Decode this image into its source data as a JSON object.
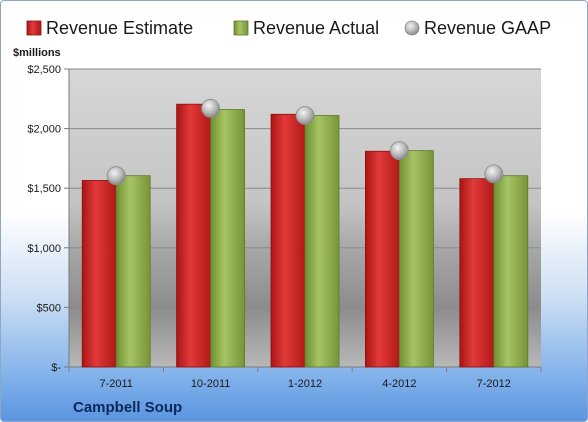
{
  "chart_data": {
    "type": "bar",
    "title": "",
    "company": "Campbell Soup",
    "ylabel": "$millions",
    "xlabel": "",
    "categories": [
      "7-2011",
      "10-2011",
      "1-2012",
      "4-2012",
      "7-2012"
    ],
    "series": [
      {
        "name": "Revenue Estimate",
        "kind": "bar",
        "color": "#cc1f1f",
        "values": [
          1565,
          2205,
          2120,
          1810,
          1580
        ]
      },
      {
        "name": "Revenue Actual",
        "kind": "bar",
        "color": "#8fb04a",
        "values": [
          1605,
          2160,
          2110,
          1815,
          1605
        ]
      },
      {
        "name": "Revenue GAAP",
        "kind": "marker",
        "color": "#b0b0b0",
        "values": [
          1605,
          2170,
          2110,
          1815,
          1620
        ]
      }
    ],
    "ylim": [
      0,
      2500
    ],
    "yticks": [
      0,
      500,
      1000,
      1500,
      2000,
      2500
    ],
    "ytick_labels": [
      "$-",
      "$500",
      "$1,000",
      "$1,500",
      "$2,000",
      "$2,500"
    ],
    "grid": true,
    "legend_position": "top"
  }
}
